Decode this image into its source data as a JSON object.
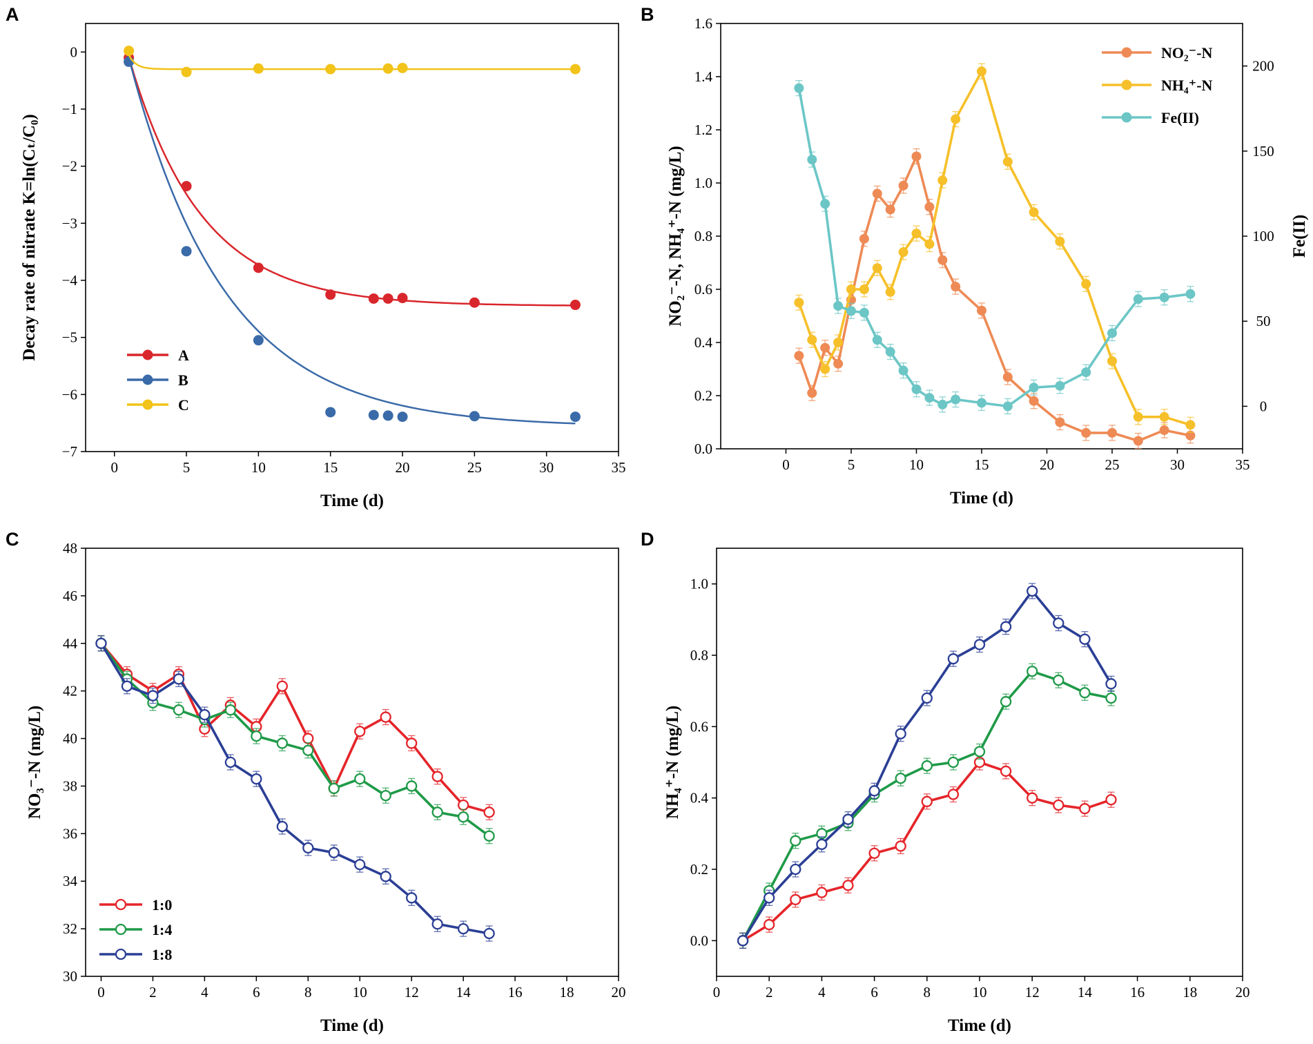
{
  "figure": {
    "panels": [
      {
        "letter": "A"
      },
      {
        "letter": "B"
      },
      {
        "letter": "C"
      },
      {
        "letter": "D"
      }
    ]
  },
  "chart_data": [
    {
      "id": "A",
      "type": "scatter",
      "xlabel": "Time (d)",
      "ylabel": "Decay rate of nitrate K=ln(Cₜ/C₀)",
      "xlim": [
        -2,
        35
      ],
      "ylim": [
        -7,
        0.5
      ],
      "xticks": [
        0,
        5,
        10,
        15,
        20,
        25,
        30,
        35
      ],
      "yticks": [
        -7,
        -6,
        -5,
        -4,
        -3,
        -2,
        -1,
        0
      ],
      "legend": "bottom-left",
      "series": [
        {
          "name": "A",
          "color": "#d9262c",
          "x": [
            1,
            5,
            10,
            15,
            18,
            19,
            20,
            25,
            32
          ],
          "y": [
            -0.1,
            -2.35,
            -3.78,
            -4.25,
            -4.32,
            -4.32,
            -4.31,
            -4.39,
            -4.43
          ],
          "fit": {
            "a": -4.45,
            "k": 0.2,
            "x0": 0.9
          }
        },
        {
          "name": "B",
          "color": "#3a6aa8",
          "x": [
            1,
            5,
            10,
            15,
            18,
            19,
            20,
            25,
            32
          ],
          "y": [
            -0.17,
            -3.49,
            -5.05,
            -6.31,
            -6.36,
            -6.37,
            -6.39,
            -6.38,
            -6.39
          ],
          "fit": {
            "a": -6.57,
            "k": 0.15,
            "x0": 0.9
          }
        },
        {
          "name": "C",
          "color": "#f2c318",
          "x": [
            1,
            5,
            10,
            15,
            19,
            20,
            32
          ],
          "y": [
            0.02,
            -0.35,
            -0.29,
            -0.3,
            -0.29,
            -0.28,
            -0.3
          ],
          "fit": {
            "a": -0.3,
            "k": 2.0,
            "x0": 0.9
          }
        }
      ]
    },
    {
      "id": "B",
      "type": "line",
      "xlabel": "Time (d)",
      "ylabel": "NO₂⁻-N, NH₄⁺-N (mg/L)",
      "y2label": "Fe(II)",
      "xlim": [
        -5,
        35
      ],
      "ylim": [
        0,
        1.6
      ],
      "y2lim": [
        -25,
        225
      ],
      "xticks": [
        0,
        5,
        10,
        15,
        20,
        25,
        30,
        35
      ],
      "yticks": [
        0.0,
        0.2,
        0.4,
        0.6,
        0.8,
        1.0,
        1.2,
        1.4,
        1.6
      ],
      "y2ticks": [
        0,
        50,
        100,
        150,
        200
      ],
      "legend": "top-right",
      "series": [
        {
          "name": "NO₂⁻-N",
          "color": "#ee8a55",
          "axis": "left",
          "x": [
            1,
            2,
            3,
            4,
            5,
            6,
            7,
            8,
            9,
            10,
            11,
            12,
            13,
            15,
            17,
            19,
            21,
            23,
            25,
            27,
            29,
            31
          ],
          "y": [
            0.35,
            0.21,
            0.38,
            0.32,
            0.56,
            0.79,
            0.96,
            0.9,
            0.99,
            1.1,
            0.91,
            0.71,
            0.61,
            0.52,
            0.27,
            0.18,
            0.1,
            0.06,
            0.06,
            0.03,
            0.07,
            0.05
          ]
        },
        {
          "name": "NH₄⁺-N",
          "color": "#f6c02a",
          "axis": "left",
          "x": [
            1,
            2,
            3,
            4,
            5,
            6,
            7,
            8,
            9,
            10,
            11,
            12,
            13,
            15,
            17,
            19,
            21,
            23,
            25,
            27,
            29,
            31
          ],
          "y": [
            0.55,
            0.41,
            0.3,
            0.4,
            0.6,
            0.6,
            0.68,
            0.59,
            0.74,
            0.81,
            0.77,
            1.01,
            1.24,
            1.42,
            1.08,
            0.89,
            0.78,
            0.62,
            0.33,
            0.12,
            0.12,
            0.09
          ]
        },
        {
          "name": "Fe(II)",
          "color": "#6cc6c6",
          "axis": "right",
          "x": [
            1,
            2,
            3,
            4,
            5,
            6,
            7,
            8,
            9,
            10,
            11,
            12,
            13,
            15,
            17,
            19,
            21,
            23,
            25,
            27,
            29,
            31
          ],
          "y": [
            187,
            145,
            119,
            59,
            56,
            55,
            39,
            32,
            21,
            10,
            5,
            1,
            4,
            2,
            0,
            11,
            12,
            20,
            43,
            63,
            64,
            66
          ]
        }
      ]
    },
    {
      "id": "C",
      "type": "line",
      "xlabel": "Time (d)",
      "ylabel": "NO₃⁻-N (mg/L)",
      "xlim": [
        -0.6,
        20
      ],
      "ylim": [
        30,
        48
      ],
      "xticks": [
        0,
        2,
        4,
        6,
        8,
        10,
        12,
        14,
        16,
        18,
        20
      ],
      "yticks": [
        30,
        32,
        34,
        36,
        38,
        40,
        42,
        44,
        46,
        48
      ],
      "legend": "bottom-left",
      "series": [
        {
          "name": "1:0",
          "color": "#e5252a",
          "x": [
            0,
            1,
            2,
            3,
            4,
            5,
            6,
            7,
            8,
            9,
            10,
            11,
            12,
            13,
            14,
            15
          ],
          "y": [
            44.0,
            42.7,
            42.0,
            42.7,
            40.4,
            41.4,
            40.5,
            42.2,
            40.0,
            37.9,
            40.3,
            40.9,
            39.8,
            38.4,
            37.2,
            36.9
          ]
        },
        {
          "name": "1:4",
          "color": "#1f9a48",
          "x": [
            0,
            1,
            2,
            3,
            4,
            5,
            6,
            7,
            8,
            9,
            10,
            11,
            12,
            13,
            14,
            15
          ],
          "y": [
            44.0,
            42.5,
            41.5,
            41.2,
            40.8,
            41.2,
            40.1,
            39.8,
            39.5,
            37.9,
            38.3,
            37.6,
            38.0,
            36.9,
            36.7,
            35.9
          ]
        },
        {
          "name": "1:8",
          "color": "#2b3f95",
          "x": [
            0,
            1,
            2,
            3,
            4,
            5,
            6,
            7,
            8,
            9,
            10,
            11,
            12,
            13,
            14,
            15
          ],
          "y": [
            44.0,
            42.2,
            41.8,
            42.5,
            41.0,
            39.0,
            38.3,
            36.3,
            35.4,
            35.2,
            34.7,
            34.2,
            33.3,
            32.2,
            32.0,
            31.8
          ]
        }
      ]
    },
    {
      "id": "D",
      "type": "line",
      "xlabel": "Time (d)",
      "ylabel": "NH₄⁺-N (mg/L)",
      "xlim": [
        0,
        20
      ],
      "ylim": [
        -0.1,
        1.1
      ],
      "xticks": [
        0,
        2,
        4,
        6,
        8,
        10,
        12,
        14,
        16,
        18,
        20
      ],
      "yticks": [
        0.0,
        0.2,
        0.4,
        0.6,
        0.8,
        1.0
      ],
      "series": [
        {
          "name": "1:0",
          "color": "#e5252a",
          "x": [
            1,
            2,
            3,
            4,
            5,
            6,
            7,
            8,
            9,
            10,
            11,
            12,
            13,
            14,
            15
          ],
          "y": [
            0.0,
            0.045,
            0.115,
            0.135,
            0.155,
            0.245,
            0.265,
            0.39,
            0.41,
            0.5,
            0.475,
            0.4,
            0.38,
            0.37,
            0.395
          ]
        },
        {
          "name": "1:4",
          "color": "#1f9a48",
          "x": [
            1,
            2,
            3,
            4,
            5,
            6,
            7,
            8,
            9,
            10,
            11,
            12,
            13,
            14,
            15
          ],
          "y": [
            0.0,
            0.14,
            0.28,
            0.3,
            0.33,
            0.41,
            0.455,
            0.49,
            0.5,
            0.53,
            0.67,
            0.755,
            0.73,
            0.695,
            0.68
          ]
        },
        {
          "name": "1:8",
          "color": "#2b3f95",
          "x": [
            1,
            2,
            3,
            4,
            5,
            6,
            7,
            8,
            9,
            10,
            11,
            12,
            13,
            14,
            15
          ],
          "y": [
            0.0,
            0.12,
            0.2,
            0.27,
            0.34,
            0.42,
            0.58,
            0.68,
            0.79,
            0.83,
            0.88,
            0.98,
            0.89,
            0.845,
            0.72
          ]
        }
      ]
    }
  ]
}
